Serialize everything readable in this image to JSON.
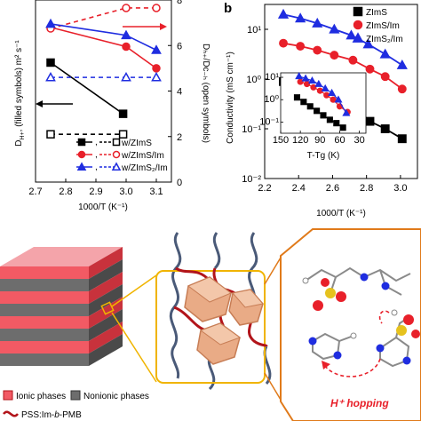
{
  "chart_data": [
    {
      "type": "line",
      "panel_label": "",
      "xlabel": "1000/T (K⁻¹)",
      "ylabel_left": "D",
      "ylabel_left_suffix": "(filled symbols) m² s⁻¹",
      "ylabel_right": "Dₕ₊/Dᴄ₋ₕ (open symbols)",
      "xlim": [
        2.7,
        3.15
      ],
      "ylim_right": [
        0,
        8
      ],
      "x_ticks": [
        "2.7",
        "2.8",
        "2.9",
        "3.0",
        "3.1"
      ],
      "right_ticks": [
        "0",
        "2",
        "4",
        "6",
        "8"
      ],
      "grid": false,
      "legend_position": "bottom-right",
      "series": [
        {
          "name": "w/ZImS",
          "color": "#000000",
          "marker": "square",
          "filled_x": [
            2.75,
            2.99
          ],
          "filled_right_units": [
            5.25,
            3.0
          ],
          "open_x": [
            2.75,
            2.99
          ],
          "open_values": [
            2.1,
            2.1
          ]
        },
        {
          "name": "w/ZImS/Im",
          "color": "#e8202a",
          "marker": "circle",
          "filled_x": [
            2.75,
            3.0,
            3.1
          ],
          "filled_right_units": [
            6.8,
            5.95,
            5.0
          ],
          "open_x": [
            2.75,
            3.0,
            3.1
          ],
          "open_values": [
            6.75,
            7.65,
            7.65
          ]
        },
        {
          "name": "w/ZImS₂/Im",
          "color": "#1f2de0",
          "marker": "triangle",
          "filled_x": [
            2.75,
            3.0,
            3.1
          ],
          "filled_right_units": [
            6.95,
            6.45,
            5.8
          ],
          "open_x": [
            2.75,
            3.0,
            3.1
          ],
          "open_values": [
            4.6,
            4.6,
            4.6
          ]
        }
      ]
    },
    {
      "type": "scatter",
      "panel_label": "b",
      "xlabel": "1000/T (K⁻¹)",
      "ylabel": "Conductivity (mS cm⁻¹)",
      "xlim": [
        2.2,
        3.1
      ],
      "ylim_log10": [
        -2,
        1.5
      ],
      "x_ticks": [
        "2.2",
        "2.4",
        "2.6",
        "2.8",
        "3.0"
      ],
      "y_ticks": [
        "10⁻²",
        "10⁻¹",
        "10⁰",
        "10¹"
      ],
      "y_scale": "log",
      "grid": false,
      "legend_position": "top-right",
      "series": [
        {
          "name": "ZImS",
          "color": "#000000",
          "marker": "square",
          "x": [
            2.31,
            2.42,
            2.51,
            2.61,
            2.72,
            2.82,
            2.91,
            3.01
          ],
          "log10_y": [
            -0.05,
            -0.2,
            -0.38,
            -0.55,
            -0.65,
            -0.85,
            -1.0,
            -1.2
          ]
        },
        {
          "name": "ZImS/Im",
          "color": "#e8202a",
          "marker": "circle",
          "x": [
            2.31,
            2.41,
            2.51,
            2.61,
            2.72,
            2.82,
            2.91,
            3.01
          ],
          "log10_y": [
            0.72,
            0.66,
            0.58,
            0.48,
            0.38,
            0.2,
            0.05,
            -0.2
          ]
        },
        {
          "name": "ZImS₂/Im",
          "color": "#1f2de0",
          "marker": "triangle",
          "x": [
            2.31,
            2.41,
            2.51,
            2.61,
            2.71,
            2.81,
            2.91,
            3.01
          ],
          "log10_y": [
            1.3,
            1.22,
            1.12,
            1.0,
            0.88,
            0.7,
            0.5,
            0.28
          ]
        }
      ],
      "inset": {
        "xlabel": "T-Tg (K)",
        "x_ticks": [
          "150",
          "120",
          "90",
          "60",
          "30"
        ],
        "y_ticks": [
          "10⁻¹",
          "10⁰",
          "10¹"
        ],
        "xlim_reversed": [
          150,
          20
        ],
        "ylim_log10": [
          -1.5,
          1.2
        ],
        "series": [
          {
            "name": "ZImS",
            "color": "#000000",
            "marker": "square",
            "x": [
              125,
              115,
              105,
              95,
              85,
              75,
              65,
              55
            ],
            "log10_y": [
              0.1,
              -0.1,
              -0.3,
              -0.5,
              -0.7,
              -0.9,
              -1.05,
              -1.25
            ]
          },
          {
            "name": "ZImS/Im",
            "color": "#e8202a",
            "marker": "circle",
            "x": [
              120,
              110,
              100,
              90,
              80,
              70,
              60,
              48
            ],
            "log10_y": [
              0.8,
              0.7,
              0.55,
              0.4,
              0.2,
              0.0,
              -0.3,
              -0.55
            ]
          },
          {
            "name": "ZImS₂/Im",
            "color": "#1f2de0",
            "marker": "triangle",
            "x": [
              122,
              112,
              102,
              92,
              82,
              72,
              62,
              50
            ],
            "log10_y": [
              1.05,
              0.95,
              0.85,
              0.7,
              0.5,
              0.3,
              0.0,
              -0.6
            ]
          }
        ]
      }
    }
  ],
  "diagram": {
    "ionic_label": "Ionic phases",
    "nonionic_label": "Nonionic phases",
    "polymer_label_prefix": "PSS:Im-",
    "polymer_label_b": "b",
    "polymer_label_suffix": "-PMB",
    "hopping_label": "H⁺ hopping",
    "colors": {
      "ionic": "#e8202a",
      "nonionic": "#555555",
      "zoom_box": "#f0b400",
      "callout": "#e07a1a",
      "chain_red": "#b2141a",
      "chain_blue": "#4a5a78"
    }
  }
}
